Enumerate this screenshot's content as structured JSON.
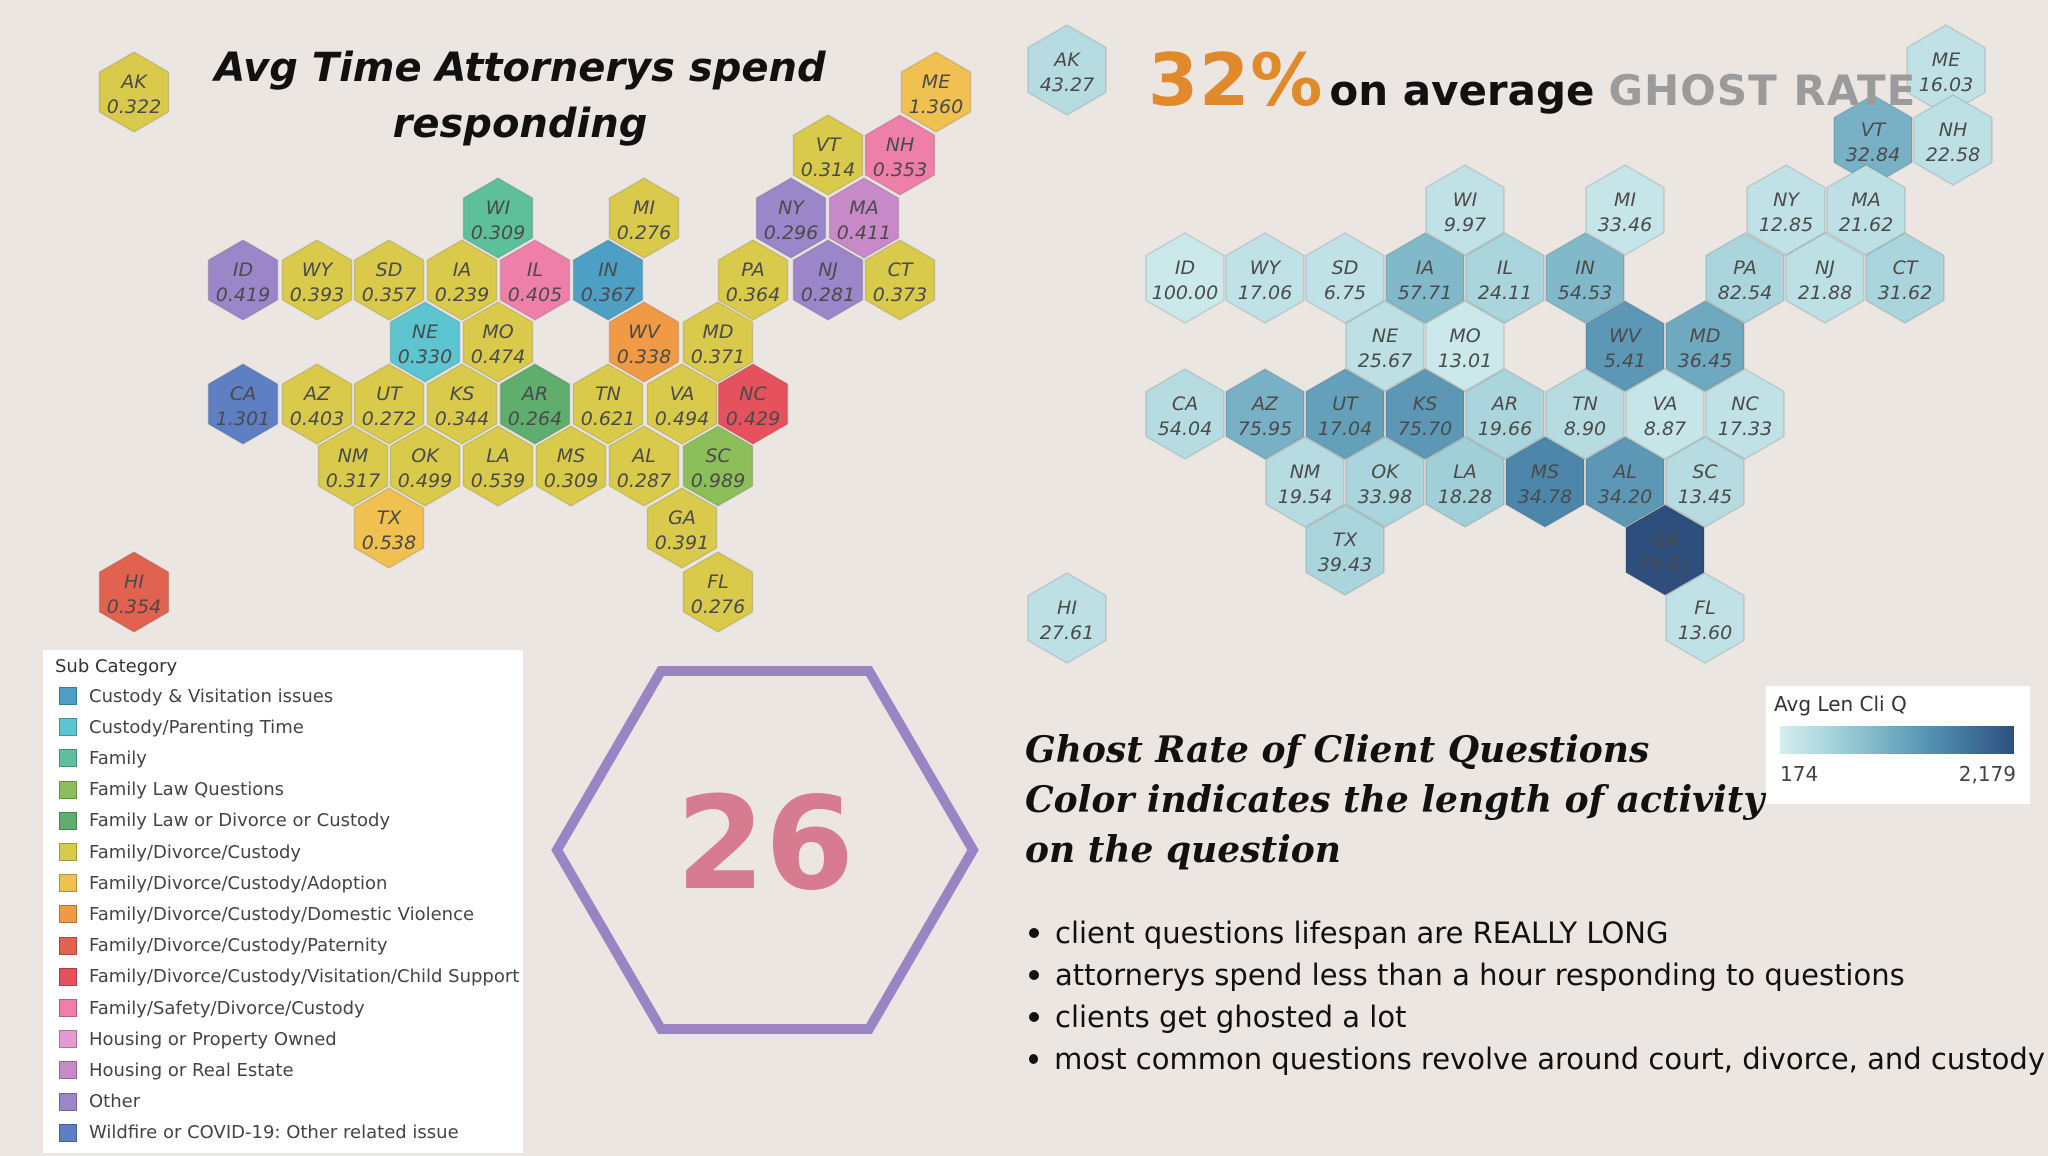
{
  "left_title": "Avg Time Attornerys spend responding",
  "right_header": {
    "percent": "32%",
    "text": "on average",
    "label": "GHOST RATE"
  },
  "big_number": "26",
  "caption_lines": [
    "Ghost Rate of Client Questions",
    "Color indicates the length of activity",
    "on the question"
  ],
  "color_legend": {
    "title": "Avg Len Cli Q",
    "min": "174",
    "max": "2,179",
    "colors": [
      "#d6efef",
      "#8ec4d0",
      "#4f8db0",
      "#2e4f7e"
    ]
  },
  "bullets": [
    "client questions lifespan are REALLY LONG",
    "attornerys spend less than a hour responding to questions",
    "clients get ghosted a lot",
    "most common questions revolve around court, divorce, and custody"
  ],
  "legend": {
    "title": "Sub Category",
    "items": [
      {
        "label": "Custody & Visitation issues",
        "color": "#4e9fc6"
      },
      {
        "label": "Custody/Parenting Time",
        "color": "#5cc5cf"
      },
      {
        "label": "Family",
        "color": "#5dbf9c"
      },
      {
        "label": "Family Law Questions",
        "color": "#8cbf5a"
      },
      {
        "label": "Family Law or Divorce or Custody",
        "color": "#5fae6e"
      },
      {
        "label": "Family/Divorce/Custody",
        "color": "#d9ca4c"
      },
      {
        "label": "Family/Divorce/Custody/Adoption",
        "color": "#f0c050"
      },
      {
        "label": "Family/Divorce/Custody/Domestic Violence",
        "color": "#f09a45"
      },
      {
        "label": "Family/Divorce/Custody/Paternity",
        "color": "#e0624f"
      },
      {
        "label": "Family/Divorce/Custody/Visitation/Child Support",
        "color": "#e5525d"
      },
      {
        "label": "Family/Safety/Divorce/Custody",
        "color": "#ee7fa8"
      },
      {
        "label": "Housing or Property Owned",
        "color": "#e59ad0"
      },
      {
        "label": "Housing or Real Estate",
        "color": "#c889c9"
      },
      {
        "label": "Other",
        "color": "#9b86c9"
      },
      {
        "label": "Wildfire or COVID-19: Other related issue",
        "color": "#5f7fc4"
      }
    ]
  },
  "chart_data": [
    {
      "type": "hex_map",
      "title": "Avg Time Attornerys spend responding",
      "states": [
        {
          "state": "AK",
          "value": "0.322",
          "category": "Family/Divorce/Custody"
        },
        {
          "state": "ME",
          "value": "1.360",
          "category": "Family/Divorce/Custody/Adoption"
        },
        {
          "state": "VT",
          "value": "0.314",
          "category": "Family/Divorce/Custody"
        },
        {
          "state": "NH",
          "value": "0.353",
          "category": "Family/Safety/Divorce/Custody"
        },
        {
          "state": "WI",
          "value": "0.309",
          "category": "Family"
        },
        {
          "state": "MI",
          "value": "0.276",
          "category": "Family/Divorce/Custody"
        },
        {
          "state": "NY",
          "value": "0.296",
          "category": "Other"
        },
        {
          "state": "MA",
          "value": "0.411",
          "category": "Housing or Real Estate"
        },
        {
          "state": "ID",
          "value": "0.419",
          "category": "Other"
        },
        {
          "state": "WY",
          "value": "0.393",
          "category": "Family/Divorce/Custody"
        },
        {
          "state": "SD",
          "value": "0.357",
          "category": "Family/Divorce/Custody"
        },
        {
          "state": "IA",
          "value": "0.239",
          "category": "Family/Divorce/Custody"
        },
        {
          "state": "IL",
          "value": "0.405",
          "category": "Family/Safety/Divorce/Custody"
        },
        {
          "state": "IN",
          "value": "0.367",
          "category": "Custody & Visitation issues"
        },
        {
          "state": "PA",
          "value": "0.364",
          "category": "Family/Divorce/Custody"
        },
        {
          "state": "NJ",
          "value": "0.281",
          "category": "Other"
        },
        {
          "state": "CT",
          "value": "0.373",
          "category": "Family/Divorce/Custody"
        },
        {
          "state": "NE",
          "value": "0.330",
          "category": "Custody/Parenting Time"
        },
        {
          "state": "MO",
          "value": "0.474",
          "category": "Family/Divorce/Custody"
        },
        {
          "state": "WV",
          "value": "0.338",
          "category": "Family/Divorce/Custody/Domestic Violence"
        },
        {
          "state": "MD",
          "value": "0.371",
          "category": "Family/Divorce/Custody"
        },
        {
          "state": "CA",
          "value": "1.301",
          "category": "Wildfire or COVID-19: Other related issue"
        },
        {
          "state": "AZ",
          "value": "0.403",
          "category": "Family/Divorce/Custody"
        },
        {
          "state": "UT",
          "value": "0.272",
          "category": "Family/Divorce/Custody"
        },
        {
          "state": "KS",
          "value": "0.344",
          "category": "Family/Divorce/Custody"
        },
        {
          "state": "AR",
          "value": "0.264",
          "category": "Family Law or Divorce or Custody"
        },
        {
          "state": "TN",
          "value": "0.621",
          "category": "Family/Divorce/Custody"
        },
        {
          "state": "VA",
          "value": "0.494",
          "category": "Family/Divorce/Custody"
        },
        {
          "state": "NC",
          "value": "0.429",
          "category": "Family/Divorce/Custody/Visitation/Child Support"
        },
        {
          "state": "NM",
          "value": "0.317",
          "category": "Family/Divorce/Custody"
        },
        {
          "state": "OK",
          "value": "0.499",
          "category": "Family/Divorce/Custody"
        },
        {
          "state": "LA",
          "value": "0.539",
          "category": "Family/Divorce/Custody"
        },
        {
          "state": "MS",
          "value": "0.309",
          "category": "Family/Divorce/Custody"
        },
        {
          "state": "AL",
          "value": "0.287",
          "category": "Family/Divorce/Custody"
        },
        {
          "state": "SC",
          "value": "0.989",
          "category": "Family Law Questions"
        },
        {
          "state": "TX",
          "value": "0.538",
          "category": "Family/Divorce/Custody/Adoption"
        },
        {
          "state": "GA",
          "value": "0.391",
          "category": "Family/Divorce/Custody"
        },
        {
          "state": "FL",
          "value": "0.276",
          "category": "Family/Divorce/Custody"
        },
        {
          "state": "HI",
          "value": "0.354",
          "category": "Family/Divorce/Custody/Paternity"
        }
      ]
    },
    {
      "type": "hex_map",
      "title": "Ghost Rate of Client Questions",
      "color_range": [
        174,
        2179
      ],
      "states": [
        {
          "state": "AK",
          "value": "43.27",
          "color_level": 0.15
        },
        {
          "state": "ME",
          "value": "16.03",
          "color_level": 0.1
        },
        {
          "state": "VT",
          "value": "32.84",
          "color_level": 0.45
        },
        {
          "state": "NH",
          "value": "22.58",
          "color_level": 0.12
        },
        {
          "state": "WI",
          "value": "9.97",
          "color_level": 0.1
        },
        {
          "state": "MI",
          "value": "33.46",
          "color_level": 0.08
        },
        {
          "state": "NY",
          "value": "12.85",
          "color_level": 0.1
        },
        {
          "state": "MA",
          "value": "21.62",
          "color_level": 0.12
        },
        {
          "state": "ID",
          "value": "100.00",
          "color_level": 0.05
        },
        {
          "state": "WY",
          "value": "17.06",
          "color_level": 0.1
        },
        {
          "state": "SD",
          "value": "6.75",
          "color_level": 0.1
        },
        {
          "state": "IA",
          "value": "57.71",
          "color_level": 0.4
        },
        {
          "state": "IL",
          "value": "24.11",
          "color_level": 0.2
        },
        {
          "state": "IN",
          "value": "54.53",
          "color_level": 0.4
        },
        {
          "state": "PA",
          "value": "82.54",
          "color_level": 0.2
        },
        {
          "state": "NJ",
          "value": "21.88",
          "color_level": 0.12
        },
        {
          "state": "CT",
          "value": "31.62",
          "color_level": 0.2
        },
        {
          "state": "NE",
          "value": "25.67",
          "color_level": 0.12
        },
        {
          "state": "MO",
          "value": "13.01",
          "color_level": 0.05
        },
        {
          "state": "WV",
          "value": "5.41",
          "color_level": 0.6
        },
        {
          "state": "MD",
          "value": "36.45",
          "color_level": 0.5
        },
        {
          "state": "CA",
          "value": "54.04",
          "color_level": 0.15
        },
        {
          "state": "AZ",
          "value": "75.95",
          "color_level": 0.45
        },
        {
          "state": "UT",
          "value": "17.04",
          "color_level": 0.55
        },
        {
          "state": "KS",
          "value": "75.70",
          "color_level": 0.6
        },
        {
          "state": "AR",
          "value": "19.66",
          "color_level": 0.2
        },
        {
          "state": "TN",
          "value": "8.90",
          "color_level": 0.15
        },
        {
          "state": "VA",
          "value": "8.87",
          "color_level": 0.08
        },
        {
          "state": "NC",
          "value": "17.33",
          "color_level": 0.1
        },
        {
          "state": "NM",
          "value": "19.54",
          "color_level": 0.15
        },
        {
          "state": "OK",
          "value": "33.98",
          "color_level": 0.2
        },
        {
          "state": "LA",
          "value": "18.28",
          "color_level": 0.25
        },
        {
          "state": "MS",
          "value": "34.78",
          "color_level": 0.7
        },
        {
          "state": "AL",
          "value": "34.20",
          "color_level": 0.6
        },
        {
          "state": "SC",
          "value": "13.45",
          "color_level": 0.15
        },
        {
          "state": "TX",
          "value": "39.43",
          "color_level": 0.2
        },
        {
          "state": "GA",
          "value": "79.61",
          "color_level": 1.0
        },
        {
          "state": "FL",
          "value": "13.60",
          "color_level": 0.1
        },
        {
          "state": "HI",
          "value": "27.61",
          "color_level": 0.12
        }
      ]
    }
  ]
}
